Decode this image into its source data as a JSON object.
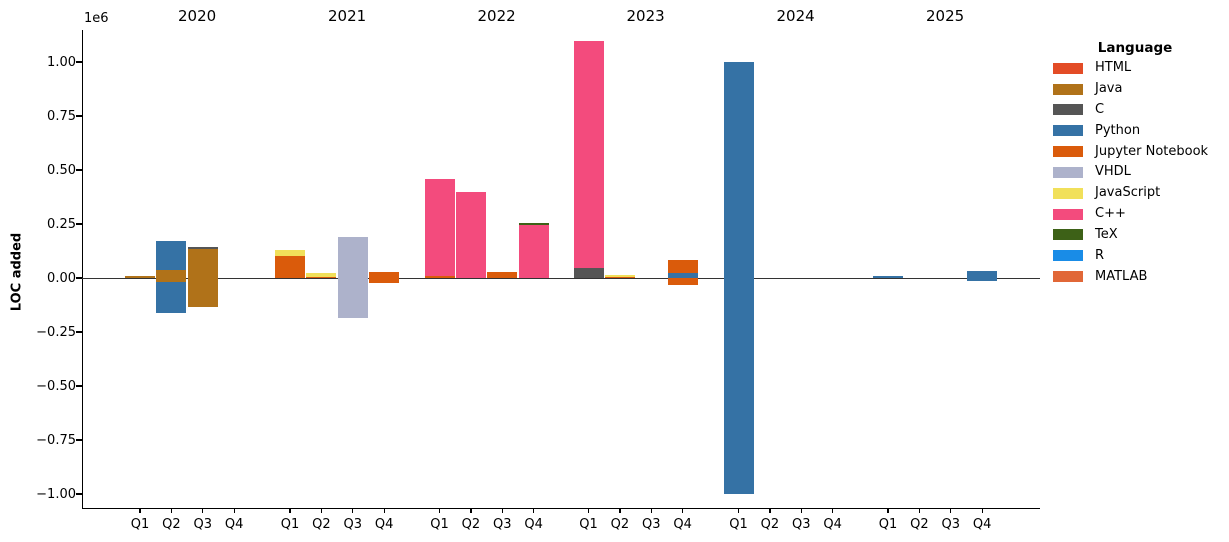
{
  "chart_data": {
    "type": "stacked_bar",
    "title": "",
    "xlabel": "",
    "ylabel": "LOC added",
    "y_scale_note": "1e6",
    "grid": false,
    "legend_position": "right",
    "background_color": "#ffffff",
    "zero_line_color": "#333333",
    "ylim": [
      -1070000,
      1150000
    ],
    "yticks": [
      {
        "label": "1.00",
        "value": 1000000
      },
      {
        "label": "0.75",
        "value": 750000
      },
      {
        "label": "0.50",
        "value": 500000
      },
      {
        "label": "0.25",
        "value": 250000
      },
      {
        "label": "0.00",
        "value": 0
      },
      {
        "label": "−0.25",
        "value": -250000
      },
      {
        "label": "−0.50",
        "value": -500000
      },
      {
        "label": "−0.75",
        "value": -750000
      },
      {
        "label": "−1.00",
        "value": -1000000
      }
    ],
    "years": [
      "2020",
      "2021",
      "2022",
      "2023",
      "2024",
      "2025"
    ],
    "quarters": [
      "Q1",
      "Q2",
      "Q3",
      "Q4"
    ],
    "legend": {
      "title": "Language",
      "entries": [
        {
          "label": "HTML",
          "color": "#e34c26"
        },
        {
          "label": "Java",
          "color": "#b07219"
        },
        {
          "label": "C",
          "color": "#555555"
        },
        {
          "label": "Python",
          "color": "#3572A5"
        },
        {
          "label": "Jupyter Notebook",
          "color": "#DA5B0B"
        },
        {
          "label": "VHDL",
          "color": "#adb2cb"
        },
        {
          "label": "JavaScript",
          "color": "#f1e05a"
        },
        {
          "label": "C++",
          "color": "#f34b7d"
        },
        {
          "label": "TeX",
          "color": "#3d6117"
        },
        {
          "label": "R",
          "color": "#198ce7"
        },
        {
          "label": "MATLAB",
          "color": "#e16737"
        }
      ]
    },
    "bars": [
      {
        "year": "2020",
        "quarter": "Q1",
        "segments": [
          {
            "language": "Java",
            "value": 8000
          }
        ]
      },
      {
        "year": "2020",
        "quarter": "Q2",
        "segments": [
          {
            "language": "Java",
            "value": 38000
          },
          {
            "language": "Python",
            "value": 135000
          },
          {
            "language": "Java",
            "value": -17000
          },
          {
            "language": "Python",
            "value": -146000
          }
        ]
      },
      {
        "year": "2020",
        "quarter": "Q3",
        "segments": [
          {
            "language": "Java",
            "value": 134000
          },
          {
            "language": "C",
            "value": 8000
          },
          {
            "language": "Java",
            "value": -133000
          }
        ]
      },
      {
        "year": "2021",
        "quarter": "Q1",
        "segments": [
          {
            "language": "Jupyter Notebook",
            "value": 103000
          },
          {
            "language": "JavaScript",
            "value": 28000
          }
        ]
      },
      {
        "year": "2021",
        "quarter": "Q2",
        "segments": [
          {
            "language": "Jupyter Notebook",
            "value": 6000
          },
          {
            "language": "JavaScript",
            "value": 16000
          }
        ]
      },
      {
        "year": "2021",
        "quarter": "Q3",
        "segments": [
          {
            "language": "VHDL",
            "value": 191000
          },
          {
            "language": "VHDL",
            "value": -187000
          }
        ]
      },
      {
        "year": "2021",
        "quarter": "Q4",
        "segments": [
          {
            "language": "Jupyter Notebook",
            "value": 28000
          },
          {
            "language": "Jupyter Notebook",
            "value": -24000
          }
        ]
      },
      {
        "year": "2022",
        "quarter": "Q1",
        "segments": [
          {
            "language": "Jupyter Notebook",
            "value": 10000
          },
          {
            "language": "C++",
            "value": 447000
          }
        ]
      },
      {
        "year": "2022",
        "quarter": "Q2",
        "segments": [
          {
            "language": "C++",
            "value": 398000
          }
        ]
      },
      {
        "year": "2022",
        "quarter": "Q3",
        "segments": [
          {
            "language": "Jupyter Notebook",
            "value": 27000
          }
        ]
      },
      {
        "year": "2022",
        "quarter": "Q4",
        "segments": [
          {
            "language": "C++",
            "value": 244000
          },
          {
            "language": "TeX",
            "value": 12000
          }
        ]
      },
      {
        "year": "2023",
        "quarter": "Q1",
        "segments": [
          {
            "language": "C",
            "value": 44000
          },
          {
            "language": "C++",
            "value": 1055000
          }
        ]
      },
      {
        "year": "2023",
        "quarter": "Q2",
        "segments": [
          {
            "language": "Jupyter Notebook",
            "value": 4000
          },
          {
            "language": "JavaScript",
            "value": 10000
          }
        ]
      },
      {
        "year": "2023",
        "quarter": "Q4",
        "segments": [
          {
            "language": "Python",
            "value": 23000
          },
          {
            "language": "Jupyter Notebook",
            "value": 62000
          },
          {
            "language": "Jupyter Notebook",
            "value": -32000
          }
        ]
      },
      {
        "year": "2024",
        "quarter": "Q1",
        "segments": [
          {
            "language": "Python",
            "value": 1000000
          },
          {
            "language": "Python",
            "value": -1000000
          }
        ]
      },
      {
        "year": "2025",
        "quarter": "Q1",
        "segments": [
          {
            "language": "Python",
            "value": 9000
          }
        ]
      },
      {
        "year": "2025",
        "quarter": "Q4",
        "segments": [
          {
            "language": "Python",
            "value": 33000
          },
          {
            "language": "Python",
            "value": -15000
          }
        ]
      }
    ]
  }
}
